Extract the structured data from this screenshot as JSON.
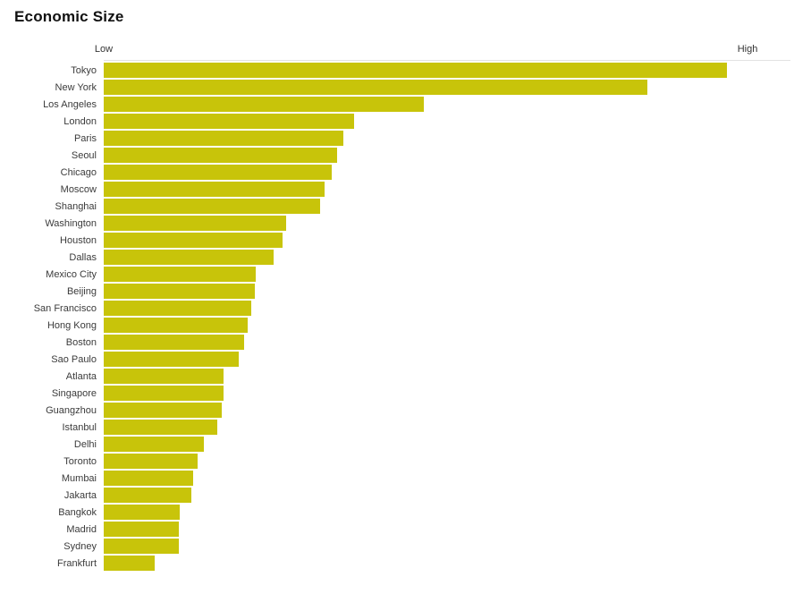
{
  "page": {
    "background_color": "#ffffff"
  },
  "chart_data": {
    "type": "bar",
    "orientation": "horizontal",
    "title": "Economic Size",
    "axis_labels": {
      "low": "Low",
      "high": "High"
    },
    "xlim": [
      0,
      100
    ],
    "grid": false,
    "legend": "none",
    "bar_color": "#c8c40a",
    "axis_line_color": "#e2e2e2",
    "categories": [
      "Tokyo",
      "New York",
      "Los Angeles",
      "London",
      "Paris",
      "Seoul",
      "Chicago",
      "Moscow",
      "Shanghai",
      "Washington",
      "Houston",
      "Dallas",
      "Mexico City",
      "Beijing",
      "San Francisco",
      "Hong Kong",
      "Boston",
      "Sao Paulo",
      "Atlanta",
      "Singapore",
      "Guangzhou",
      "Istanbul",
      "Delhi",
      "Toronto",
      "Mumbai",
      "Jakarta",
      "Bangkok",
      "Madrid",
      "Sydney",
      "Frankfurt"
    ],
    "values": [
      90.8,
      79.2,
      46.6,
      36.5,
      34.9,
      34.0,
      33.2,
      32.2,
      31.5,
      26.6,
      26.0,
      24.7,
      22.1,
      22.0,
      21.5,
      21.0,
      20.4,
      19.7,
      17.4,
      17.4,
      17.2,
      16.5,
      14.6,
      13.7,
      13.0,
      12.8,
      11.1,
      10.9,
      10.9,
      7.4
    ]
  }
}
